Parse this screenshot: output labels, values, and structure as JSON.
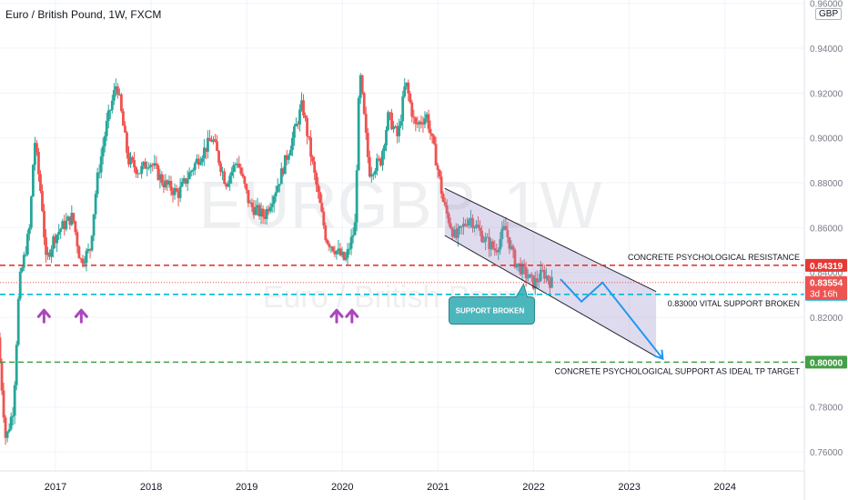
{
  "header": {
    "title": "Euro / British Pound, 1W, FXCM",
    "currency": "GBP"
  },
  "watermark": {
    "symbol": "EURGBP, 1W",
    "description": "Euro / British Pound"
  },
  "colors": {
    "up": "#26a69a",
    "down": "#ef5350",
    "resistance": "#e53935",
    "support": "#00bcd4",
    "target": "#43a047",
    "channel_fill": "#9c8fc9",
    "arrow": "#2196f3",
    "callout": "#4db6bc",
    "marker": "#ab47bc"
  },
  "chart_data": {
    "type": "candlestick",
    "symbol": "EURGBP",
    "timeframe": "1W",
    "x_axis": {
      "ticks": [
        "2017",
        "2018",
        "2019",
        "2020",
        "2021",
        "2022",
        "2023",
        "2024"
      ],
      "range": [
        2016.42,
        2024.83
      ]
    },
    "y_axis": {
      "ticks": [
        "0.96000",
        "0.94000",
        "0.92000",
        "0.90000",
        "0.88000",
        "0.86000",
        "0.84000",
        "0.82000",
        "0.80000",
        "0.78000",
        "0.76000"
      ],
      "range": [
        0.7515,
        0.9615
      ],
      "position": "right"
    },
    "price_path": [
      [
        2016.42,
        0.811
      ],
      [
        2016.5,
        0.765
      ],
      [
        2016.58,
        0.78
      ],
      [
        2016.64,
        0.835
      ],
      [
        2016.75,
        0.86
      ],
      [
        2016.8,
        0.9
      ],
      [
        2016.88,
        0.87
      ],
      [
        2016.92,
        0.845
      ],
      [
        2017.0,
        0.855
      ],
      [
        2017.08,
        0.86
      ],
      [
        2017.2,
        0.865
      ],
      [
        2017.28,
        0.845
      ],
      [
        2017.38,
        0.85
      ],
      [
        2017.45,
        0.88
      ],
      [
        2017.55,
        0.905
      ],
      [
        2017.66,
        0.925
      ],
      [
        2017.78,
        0.89
      ],
      [
        2017.9,
        0.885
      ],
      [
        2018.0,
        0.89
      ],
      [
        2018.15,
        0.88
      ],
      [
        2018.3,
        0.875
      ],
      [
        2018.5,
        0.89
      ],
      [
        2018.66,
        0.9
      ],
      [
        2018.8,
        0.88
      ],
      [
        2018.92,
        0.89
      ],
      [
        2019.05,
        0.87
      ],
      [
        2019.2,
        0.865
      ],
      [
        2019.35,
        0.88
      ],
      [
        2019.5,
        0.9
      ],
      [
        2019.6,
        0.915
      ],
      [
        2019.72,
        0.885
      ],
      [
        2019.85,
        0.855
      ],
      [
        2019.95,
        0.85
      ],
      [
        2020.05,
        0.845
      ],
      [
        2020.15,
        0.86
      ],
      [
        2020.2,
        0.93
      ],
      [
        2020.3,
        0.885
      ],
      [
        2020.42,
        0.89
      ],
      [
        2020.5,
        0.91
      ],
      [
        2020.6,
        0.9
      ],
      [
        2020.68,
        0.925
      ],
      [
        2020.78,
        0.905
      ],
      [
        2020.9,
        0.91
      ],
      [
        2021.0,
        0.89
      ],
      [
        2021.08,
        0.87
      ],
      [
        2021.2,
        0.855
      ],
      [
        2021.35,
        0.865
      ],
      [
        2021.5,
        0.855
      ],
      [
        2021.62,
        0.85
      ],
      [
        2021.72,
        0.86
      ],
      [
        2021.82,
        0.845
      ],
      [
        2021.92,
        0.84
      ],
      [
        2022.02,
        0.835
      ],
      [
        2022.12,
        0.84
      ],
      [
        2022.2,
        0.8355
      ]
    ],
    "arrow_markers_x": [
      2016.88,
      2017.27,
      2019.94,
      2020.1
    ],
    "levels": [
      {
        "name": "resistance",
        "value": 0.84319,
        "label": "CONCRETE PSYCHOLOGICAL RESISTANCE",
        "price_tag": "0.84319"
      },
      {
        "name": "support",
        "value": 0.83024,
        "label": "0.83000 VITAL SUPPORT BROKEN",
        "price_tag": "0.83024"
      },
      {
        "name": "target",
        "value": 0.8,
        "label": "CONCRETE PSYCHOLOGICAL SUPPORT AS IDEAL TP TARGET",
        "price_tag": "0.80000"
      }
    ],
    "current_price": {
      "value": 0.83554,
      "label": "0.83554",
      "countdown": "3d 16h"
    },
    "channel": {
      "upper": [
        [
          2021.07,
          0.8775
        ],
        [
          2023.28,
          0.8315
        ]
      ],
      "lower": [
        [
          2021.07,
          0.8565
        ],
        [
          2023.28,
          0.8025
        ]
      ]
    },
    "projection": [
      [
        2022.28,
        0.837
      ],
      [
        2022.5,
        0.827
      ],
      [
        2022.72,
        0.8355
      ],
      [
        2023.35,
        0.8015
      ]
    ],
    "callout": {
      "label": "SUPPORT BROKEN",
      "x": 2022.18,
      "y": 0.8275
    }
  }
}
